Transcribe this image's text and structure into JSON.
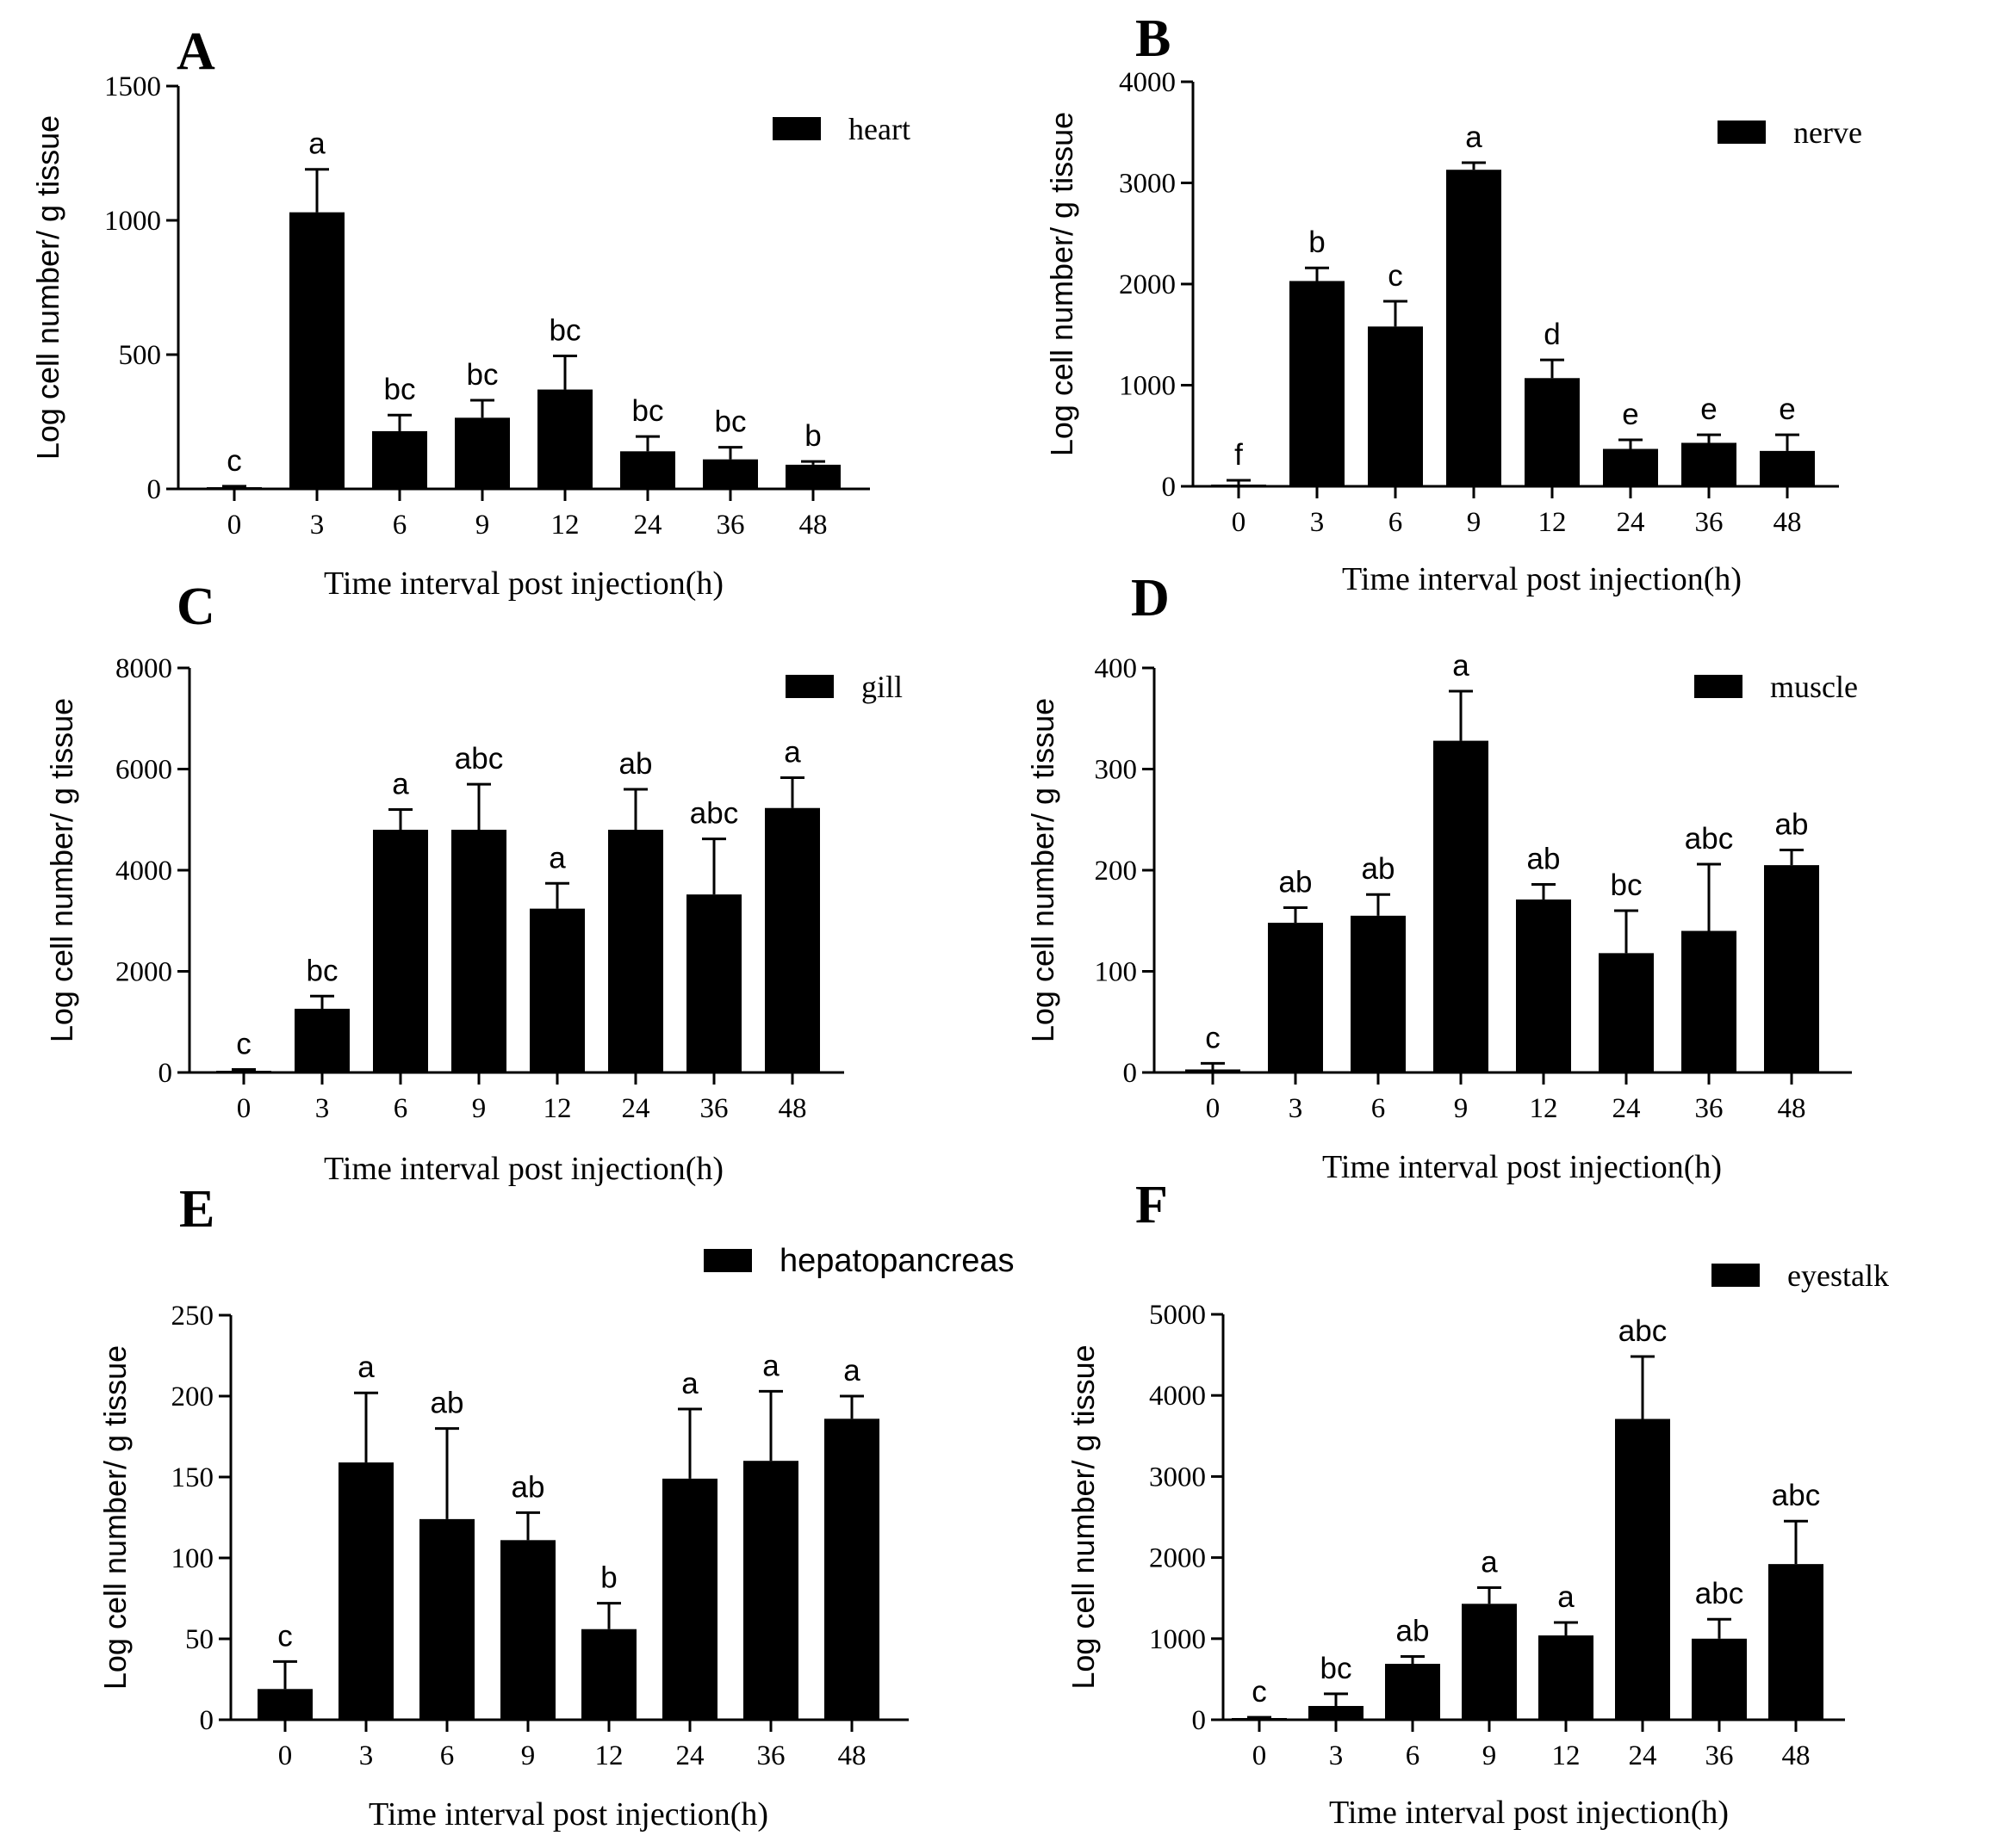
{
  "chart_data": [
    {
      "panel": "A",
      "type": "bar",
      "legend": "heart",
      "categories": [
        "0",
        "3",
        "6",
        "9",
        "12",
        "24",
        "36",
        "48"
      ],
      "values": [
        5,
        1030,
        215,
        265,
        370,
        140,
        110,
        90
      ],
      "errors": [
        5,
        160,
        60,
        65,
        125,
        55,
        45,
        12
      ],
      "sig": [
        "c",
        "a",
        "bc",
        "bc",
        "bc",
        "bc",
        "bc",
        "b"
      ],
      "ylim": [
        0,
        1500
      ],
      "yticks": [
        0,
        500,
        1000,
        1500
      ],
      "ylabel": "Log cell number/ g tissue",
      "xlabel": "Time interval post injection(h)"
    },
    {
      "panel": "B",
      "type": "bar",
      "legend": "nerve",
      "categories": [
        "0",
        "3",
        "6",
        "9",
        "12",
        "24",
        "36",
        "48"
      ],
      "values": [
        15,
        2030,
        1580,
        3130,
        1070,
        370,
        430,
        350
      ],
      "errors": [
        45,
        130,
        250,
        70,
        180,
        90,
        80,
        160
      ],
      "sig": [
        "f",
        "b",
        "c",
        "a",
        "d",
        "e",
        "e",
        "e"
      ],
      "ylim": [
        0,
        4000
      ],
      "yticks": [
        0,
        1000,
        2000,
        3000,
        4000
      ],
      "ylabel": "Log cell number/ g tissue",
      "xlabel": "Time interval post injection(h)"
    },
    {
      "panel": "C",
      "type": "bar",
      "legend": "gill",
      "categories": [
        "0",
        "3",
        "6",
        "9",
        "12",
        "24",
        "36",
        "48"
      ],
      "values": [
        20,
        1260,
        4800,
        4800,
        3240,
        4800,
        3520,
        5230
      ],
      "errors": [
        40,
        250,
        400,
        900,
        500,
        800,
        1100,
        600
      ],
      "sig": [
        "c",
        "bc",
        "a",
        "abc",
        "a",
        "ab",
        "abc",
        "a"
      ],
      "ylim": [
        0,
        8000
      ],
      "yticks": [
        0,
        2000,
        4000,
        6000,
        8000
      ],
      "ylabel": "Log cell number/ g tissue",
      "xlabel": "Time interval post injection(h)"
    },
    {
      "panel": "D",
      "type": "bar",
      "legend": "muscle",
      "categories": [
        "0",
        "3",
        "6",
        "9",
        "12",
        "24",
        "36",
        "48"
      ],
      "values": [
        3,
        148,
        155,
        328,
        171,
        118,
        140,
        205
      ],
      "errors": [
        6,
        15,
        21,
        49,
        15,
        42,
        66,
        15
      ],
      "sig": [
        "c",
        "ab",
        "ab",
        "a",
        "ab",
        "bc",
        "abc",
        "ab"
      ],
      "ylim": [
        0,
        400
      ],
      "yticks": [
        0,
        100,
        200,
        300,
        400
      ],
      "ylabel": "Log cell number/ g tissue",
      "xlabel": "Time interval post injection(h)"
    },
    {
      "panel": "E",
      "type": "bar",
      "legend": "hepatopancreas",
      "categories": [
        "0",
        "3",
        "6",
        "9",
        "12",
        "24",
        "36",
        "48"
      ],
      "values": [
        19,
        159,
        124,
        111,
        56,
        149,
        160,
        186
      ],
      "errors": [
        17,
        43,
        56,
        17,
        16,
        43,
        43,
        14
      ],
      "sig": [
        "c",
        "a",
        "ab",
        "ab",
        "b",
        "a",
        "a",
        "a"
      ],
      "ylim": [
        0,
        250
      ],
      "yticks": [
        0,
        50,
        100,
        150,
        200,
        250
      ],
      "ylabel": "Log cell number/ g tissue",
      "xlabel": "Time interval post injection(h)"
    },
    {
      "panel": "F",
      "type": "bar",
      "legend": "eyestalk",
      "categories": [
        "0",
        "3",
        "6",
        "9",
        "12",
        "24",
        "36",
        "48"
      ],
      "values": [
        20,
        170,
        690,
        1430,
        1040,
        3710,
        1000,
        1920
      ],
      "errors": [
        10,
        150,
        90,
        200,
        160,
        770,
        240,
        530
      ],
      "sig": [
        "c",
        "bc",
        "ab",
        "a",
        "a",
        "abc",
        "abc",
        "abc"
      ],
      "ylim": [
        0,
        5000
      ],
      "yticks": [
        0,
        1000,
        2000,
        3000,
        4000,
        5000
      ],
      "ylabel": "Log cell number/ g tissue",
      "xlabel": "Time interval post injection(h)"
    }
  ]
}
